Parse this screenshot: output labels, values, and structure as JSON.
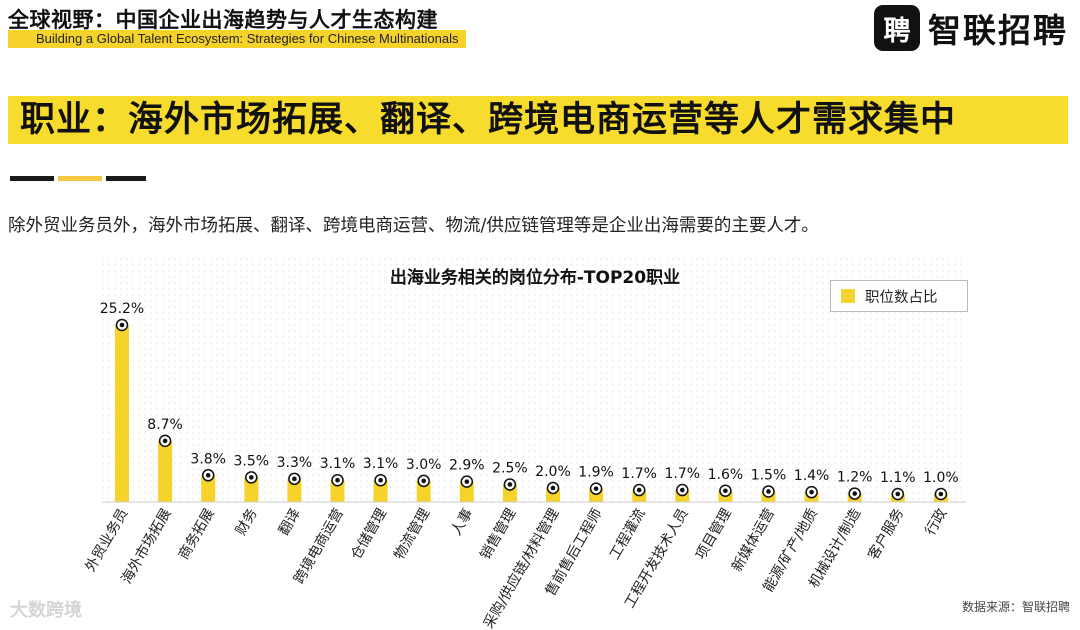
{
  "header": {
    "title": "全球视野：中国企业出海趋势与人才生态构建",
    "subtitle": "Building a Global Talent Ecosystem: Strategies for Chinese Multinationals",
    "logo_mark": "聘",
    "logo_text": "智联招聘"
  },
  "banner": {
    "title": "职业：海外市场拓展、翻译、跨境电商运营等人才需求集中"
  },
  "description": "除外贸业务员外，海外市场拓展、翻译、跨境电商运营、物流/供应链管理等是企业出海需要的主要人才。",
  "footer": {
    "source": "数据来源：智联招聘",
    "watermark": "大数跨境"
  },
  "colors": {
    "accent": "#f5d32a",
    "banner": "#f7dc2e",
    "marker": "#111111",
    "deco": [
      "#1a1a1a",
      "#f5c842",
      "#1a1a1a"
    ]
  },
  "chart_data": {
    "type": "bar",
    "title": "出海业务相关的岗位分布-TOP20职业",
    "legend": "职位数占比",
    "legend_position": "top-right",
    "grid": false,
    "value_suffix": "%",
    "ylim": [
      0,
      30
    ],
    "categories": [
      "外贸业务员",
      "海外市场拓展",
      "商务拓展",
      "财务",
      "翻译",
      "跨境电商运营",
      "仓储管理",
      "物流管理",
      "人事",
      "销售管理",
      "采购/供应链/材料管理",
      "售前售后工程师",
      "工程灌流",
      "工程开发技术人员",
      "项目管理",
      "新媒体运营",
      "能源/矿产/地质",
      "机械设计/制造",
      "客户服务",
      "行政"
    ],
    "series": [
      {
        "name": "职位数占比",
        "values": [
          25.2,
          8.7,
          3.8,
          3.5,
          3.3,
          3.1,
          3.1,
          3.0,
          2.9,
          2.5,
          2.0,
          1.9,
          1.7,
          1.7,
          1.6,
          1.5,
          1.4,
          1.2,
          1.1,
          1.0
        ]
      }
    ]
  }
}
